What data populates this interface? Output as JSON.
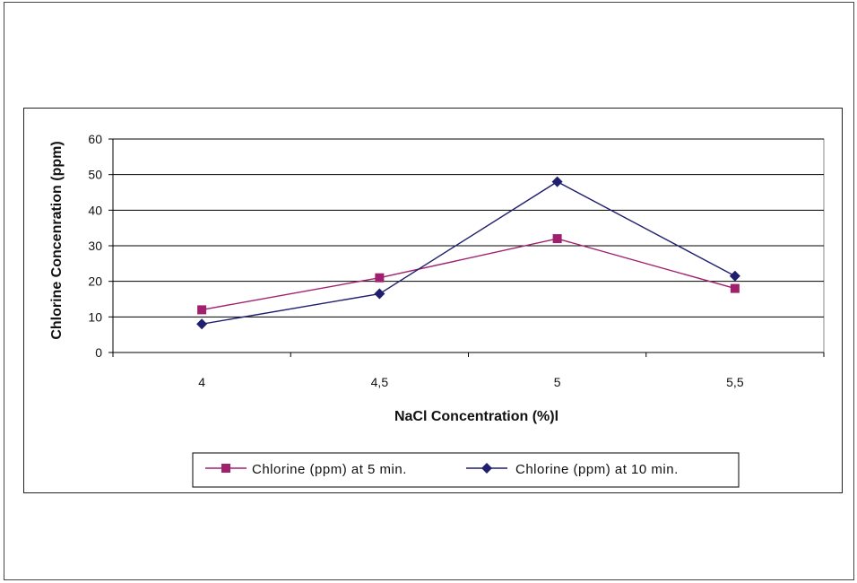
{
  "chart_data": {
    "type": "line",
    "title": "",
    "xlabel": "NaCl Concentration (%)l",
    "ylabel": "Chlorine Concenration (ppm)",
    "categories": [
      "4",
      "4,5",
      "5",
      "5,5"
    ],
    "ylim": [
      0,
      60
    ],
    "yticks": [
      0,
      10,
      20,
      30,
      40,
      50,
      60
    ],
    "grid": true,
    "legend_position": "bottom",
    "series": [
      {
        "name": "Chlorine (ppm) at 5 min.",
        "values": [
          12,
          21,
          32,
          18
        ],
        "color": "#a0206e",
        "marker": "square"
      },
      {
        "name": "Chlorine (ppm) at 10 min.",
        "values": [
          8,
          16.5,
          48,
          21.5
        ],
        "color": "#1f1f6e",
        "marker": "diamond"
      }
    ]
  }
}
